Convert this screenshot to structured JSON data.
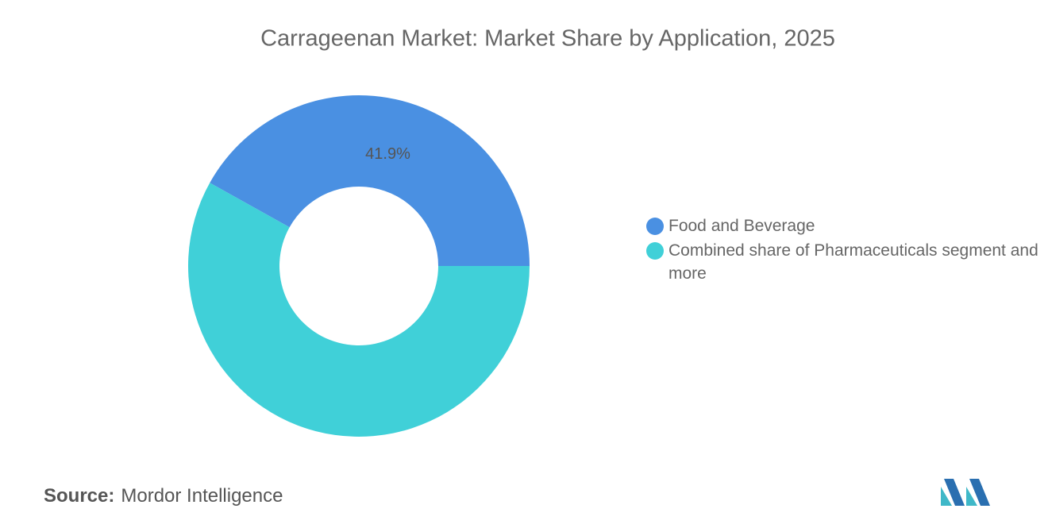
{
  "chart_data": {
    "type": "donut",
    "title": "Carrageenan Market: Market Share by Application, 2025",
    "categories": [
      "Food and Beverage",
      "Combined share of Pharmaceuticals segment and more"
    ],
    "values": [
      41.9,
      58.1
    ],
    "value_labels": [
      "41.9%",
      null
    ],
    "colors": [
      "#4a90e2",
      "#40d0d8"
    ],
    "legend": "right"
  },
  "footer": {
    "source_label": "Source:",
    "source": "Mordor Intelligence"
  }
}
